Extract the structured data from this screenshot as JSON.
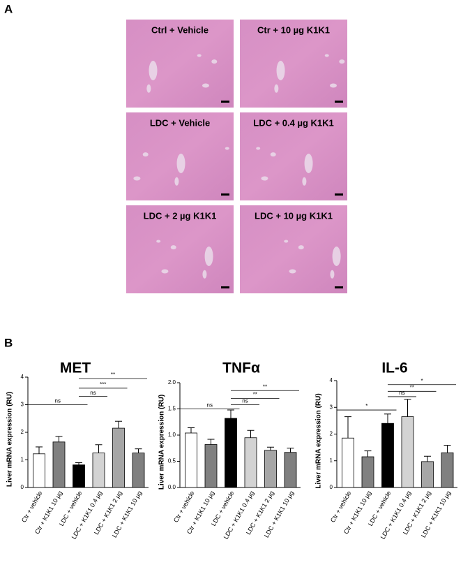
{
  "panel_labels": [
    "A",
    "B"
  ],
  "images": [
    {
      "label": "Ctrl + Vehicle"
    },
    {
      "label": "Ctr + 10 µg K1K1"
    },
    {
      "label": "LDC + Vehicle"
    },
    {
      "label": "LDC + 0.4 µg K1K1"
    },
    {
      "label": "LDC + 2 µg K1K1"
    },
    {
      "label": "LDC + 10 µg K1K1"
    }
  ],
  "chart_data": [
    {
      "type": "bar",
      "title": "MET",
      "y_label": "Liver mRNA expression (RU)",
      "categories": [
        "Ctr + vehicle",
        "Ctr + K1K1 10 µg",
        "LDC + vehicle",
        "LDC + K1K1 0.4 µg",
        "LDC + K1K1 2 µg",
        "LDC + K1K1 10 µg"
      ],
      "values": [
        1.22,
        1.65,
        0.82,
        1.25,
        2.15,
        1.25
      ],
      "errors": [
        0.25,
        0.2,
        0.08,
        0.3,
        0.25,
        0.15
      ],
      "colors": [
        "#ffffff",
        "#808080",
        "#000000",
        "#d3d3d3",
        "#a6a6a6",
        "#808080"
      ],
      "ylim": [
        0,
        4
      ],
      "yticks": [
        0,
        1,
        2,
        3,
        4
      ],
      "annotations": [
        {
          "text": "ns",
          "from": 0,
          "to": 2,
          "y": 3
        },
        {
          "text": "ns",
          "from": 2,
          "to": 3,
          "y": 3.3
        },
        {
          "text": "***",
          "from": 2,
          "to": 4,
          "y": 3.6
        },
        {
          "text": "**",
          "from": 2,
          "to": 5,
          "y": 3.95
        }
      ]
    },
    {
      "type": "bar",
      "title": "TNFα",
      "y_label": "Liver mRNA expression (RU)",
      "categories": [
        "Ctr + vehicle",
        "Ctr + K1K1 10 µg",
        "LDC + vehicle",
        "LDC + K1K1 0.4 µg",
        "LDC + K1K1 2 µg",
        "LDC + K1K1 10 µg"
      ],
      "values": [
        1.04,
        0.82,
        1.32,
        0.95,
        0.71,
        0.67
      ],
      "errors": [
        0.1,
        0.1,
        0.16,
        0.14,
        0.06,
        0.08
      ],
      "colors": [
        "#ffffff",
        "#808080",
        "#000000",
        "#d3d3d3",
        "#a6a6a6",
        "#808080"
      ],
      "ylim": [
        0,
        2
      ],
      "yticks": [
        {
          "value": 0,
          "label": "0.0"
        },
        0.5,
        {
          "value": 1,
          "label": "1.0"
        },
        1.5,
        {
          "value": 2,
          "label": "2.0"
        }
      ],
      "annotations": [
        {
          "text": "ns",
          "from": 0,
          "to": 2,
          "y": 1.5
        },
        {
          "text": "ns",
          "from": 2,
          "to": 3,
          "y": 1.58
        },
        {
          "text": "**",
          "from": 2,
          "to": 4,
          "y": 1.7
        },
        {
          "text": "**",
          "from": 2,
          "to": 5,
          "y": 1.85
        }
      ]
    },
    {
      "type": "bar",
      "title": "IL-6",
      "y_label": "Liver mRNA expression (RU)",
      "categories": [
        "Ctr + vehicle",
        "Ctr + K1K1 10 µg",
        "LDC + vehicle",
        "LDC + K1K1 0.4 µg",
        "LDC + K1K1 2 µg",
        "LDC + K1K1 10 µg"
      ],
      "values": [
        1.85,
        1.15,
        2.4,
        2.65,
        0.97,
        1.3
      ],
      "errors": [
        0.8,
        0.22,
        0.35,
        0.65,
        0.2,
        0.28
      ],
      "colors": [
        "#ffffff",
        "#808080",
        "#000000",
        "#d3d3d3",
        "#a6a6a6",
        "#808080"
      ],
      "ylim": [
        0,
        4
      ],
      "yticks": [
        0,
        1,
        2,
        3,
        4
      ],
      "annotations": [
        {
          "text": "*",
          "from": 0,
          "to": 2,
          "y": 2.9
        },
        {
          "text": "ns",
          "from": 2,
          "to": 3,
          "y": 3.4
        },
        {
          "text": "**",
          "from": 2,
          "to": 4,
          "y": 3.6
        },
        {
          "text": "*",
          "from": 2,
          "to": 5,
          "y": 3.85
        }
      ]
    }
  ]
}
